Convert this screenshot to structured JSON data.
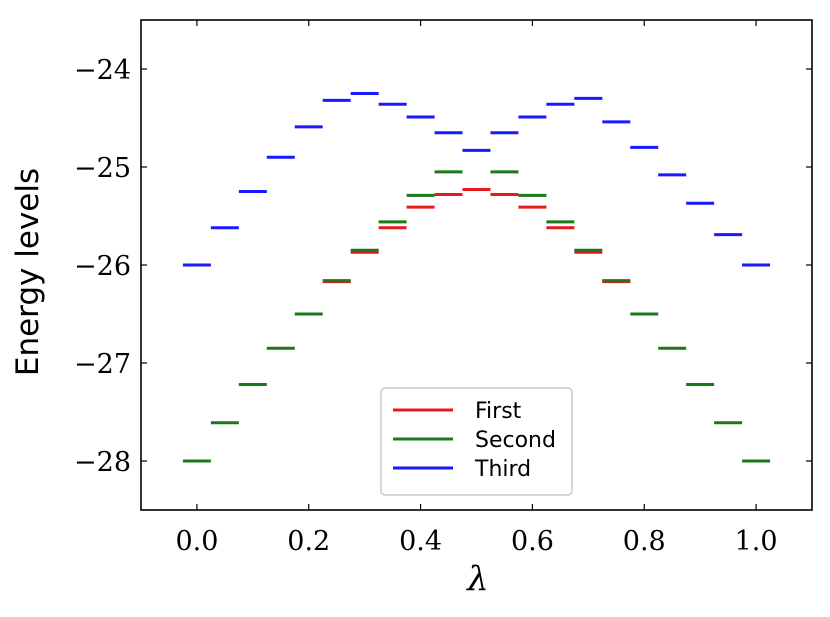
{
  "chart_data": {
    "type": "line",
    "xlabel": "λ",
    "ylabel": "Energy levels",
    "xlim": [
      -0.1,
      1.1
    ],
    "ylim": [
      -28.5,
      -23.5
    ],
    "xticks": [
      0.0,
      0.2,
      0.4,
      0.6,
      0.8,
      1.0
    ],
    "xtick_labels": [
      "0.0",
      "0.2",
      "0.4",
      "0.6",
      "0.8",
      "1.0"
    ],
    "yticks": [
      -24,
      -25,
      -26,
      -27,
      -28
    ],
    "ytick_labels": [
      "−24",
      "−25",
      "−26",
      "−27",
      "−28"
    ],
    "grid": false,
    "legend_position": "lower-center",
    "x": [
      0.0,
      0.05,
      0.1,
      0.15,
      0.2,
      0.25,
      0.3,
      0.35,
      0.4,
      0.45,
      0.5,
      0.55,
      0.6,
      0.65,
      0.7,
      0.75,
      0.8,
      0.85,
      0.9,
      0.95,
      1.0
    ],
    "series": [
      {
        "name": "First",
        "color": "#e41a1c",
        "values": [
          null,
          null,
          null,
          null,
          null,
          -26.17,
          -25.87,
          -25.62,
          -25.41,
          -25.28,
          -25.23,
          -25.28,
          -25.41,
          -25.62,
          -25.87,
          -26.17,
          null,
          null,
          null,
          null,
          null
        ]
      },
      {
        "name": "Second",
        "color": "#1a7a1a",
        "values": [
          -28.0,
          -27.61,
          -27.22,
          -26.85,
          -26.5,
          -26.16,
          -25.85,
          -25.56,
          -25.29,
          -25.05,
          null,
          -25.05,
          -25.29,
          -25.56,
          -25.85,
          -26.16,
          -26.5,
          -26.85,
          -27.22,
          -27.61,
          -28.0
        ]
      },
      {
        "name": "Third",
        "color": "#1a1aff",
        "values": [
          -26.0,
          -25.62,
          -25.25,
          -24.9,
          -24.59,
          -24.32,
          -24.25,
          -24.36,
          -24.49,
          -24.65,
          -24.83,
          -24.65,
          -24.49,
          -24.36,
          -24.3,
          -24.54,
          -24.8,
          -25.08,
          -25.37,
          -25.69,
          -26.0
        ]
      }
    ]
  }
}
